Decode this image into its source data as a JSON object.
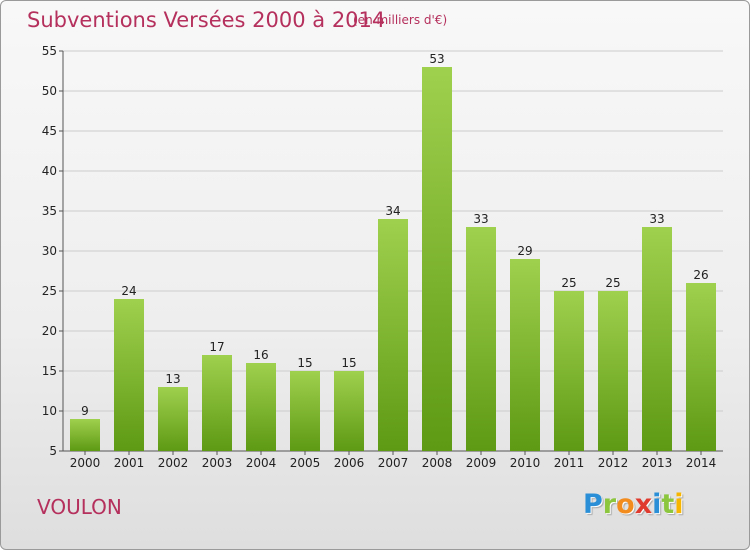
{
  "title": "Subventions Versées 2000 à 2014",
  "subtitle": "(en milliers d'€)",
  "place": "VOULON",
  "logo": {
    "letters": [
      "P",
      "r",
      "o",
      "x",
      "i",
      "t",
      "i"
    ],
    "colors": [
      "#2a8fd6",
      "#8cc63f",
      "#f28c1e",
      "#e03a2e",
      "#2a8fd6",
      "#8cc63f",
      "#f7b500"
    ]
  },
  "colors": {
    "bar_top": "#9fd04e",
    "bar_bottom": "#5e9a14",
    "title": "#b5305c",
    "grid": "#cccccc"
  },
  "chart_data": {
    "type": "bar",
    "title": "Subventions Versées 2000 à 2014",
    "subtitle": "(en milliers d'€)",
    "xlabel": "",
    "ylabel": "",
    "categories": [
      "2000",
      "2001",
      "2002",
      "2003",
      "2004",
      "2005",
      "2006",
      "2007",
      "2008",
      "2009",
      "2010",
      "2011",
      "2012",
      "2013",
      "2014"
    ],
    "values": [
      9,
      24,
      13,
      17,
      16,
      15,
      15,
      34,
      53,
      33,
      29,
      25,
      25,
      33,
      26
    ],
    "ylim": [
      5,
      55
    ],
    "yticks": [
      5,
      10,
      15,
      20,
      25,
      30,
      35,
      40,
      45,
      50,
      55
    ],
    "grid": true,
    "legend": "none"
  }
}
